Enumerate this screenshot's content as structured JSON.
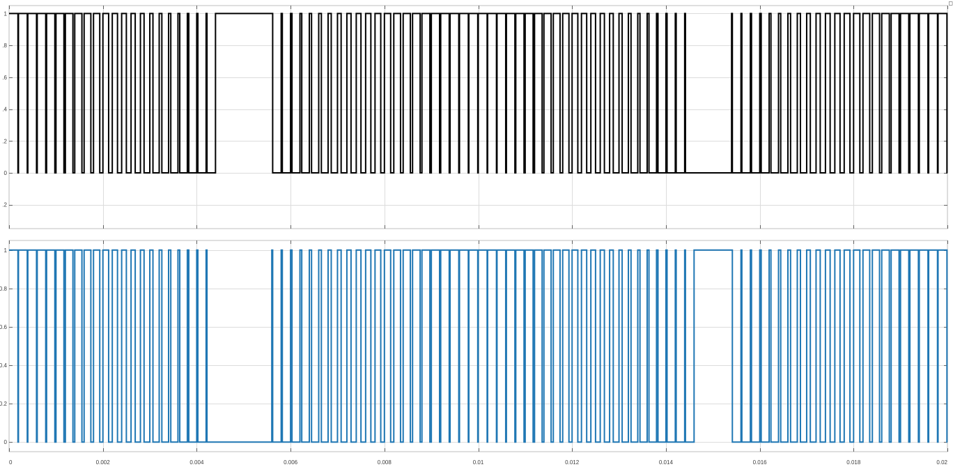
{
  "window": {
    "corner_glyph": "◻"
  },
  "chart_data": [
    {
      "type": "line",
      "plot": "top",
      "title": "",
      "xlabel": "",
      "ylabel": "",
      "xlim": [
        0,
        0.02
      ],
      "ylim": [
        -0.35,
        1.05
      ],
      "y_ticks": [
        1,
        0.8,
        0.6,
        0.4,
        0.2,
        0,
        -0.2
      ],
      "y_tick_labels": [
        "1",
        ".8",
        ".6",
        ".4",
        ".2",
        "0",
        ".2"
      ],
      "x_ticks": [
        0,
        0.002,
        0.004,
        0.006,
        0.008,
        0.01,
        0.012,
        0.014,
        0.016,
        0.018,
        0.02
      ],
      "x_tick_labels": [],
      "grid": true,
      "series": [
        {
          "color": "#000000",
          "shape": "pulse-train (0/1 switching)",
          "x_start": 0.0,
          "x_end": 0.02,
          "pulse_period": 0.0002,
          "high_intervals": [
            [
              0.00439,
              0.00561
            ]
          ],
          "low_intervals": [
            [
              0.01452,
              0.01548
            ]
          ]
        }
      ]
    },
    {
      "type": "line",
      "plot": "bottom",
      "title": "",
      "xlabel": "",
      "ylabel": "",
      "xlim": [
        0,
        0.02
      ],
      "ylim": [
        -0.05,
        1.05
      ],
      "y_ticks": [
        1,
        0.8,
        0.6,
        0.4,
        0.2,
        0
      ],
      "y_tick_labels": [
        "1",
        "0.8",
        "0.6",
        "0.4",
        "0.2",
        "0"
      ],
      "x_ticks": [
        0,
        0.002,
        0.004,
        0.006,
        0.008,
        0.01,
        0.012,
        0.014,
        0.016,
        0.018,
        0.02
      ],
      "x_tick_labels": [
        "0",
        "0.002",
        "0.004",
        "0.006",
        "0.008",
        "0.01",
        "0.012",
        "0.014",
        "0.016",
        "0.018",
        "0.02"
      ],
      "grid": true,
      "series": [
        {
          "color": "#1f77b4",
          "shape": "pulse-train (0/1 switching)",
          "x_start": 0.0,
          "x_end": 0.02,
          "pulse_period": 0.0002,
          "low_intervals": [
            [
              0.00439,
              0.00561
            ]
          ],
          "high_intervals": [
            [
              0.01452,
              0.01548
            ]
          ]
        }
      ]
    }
  ]
}
